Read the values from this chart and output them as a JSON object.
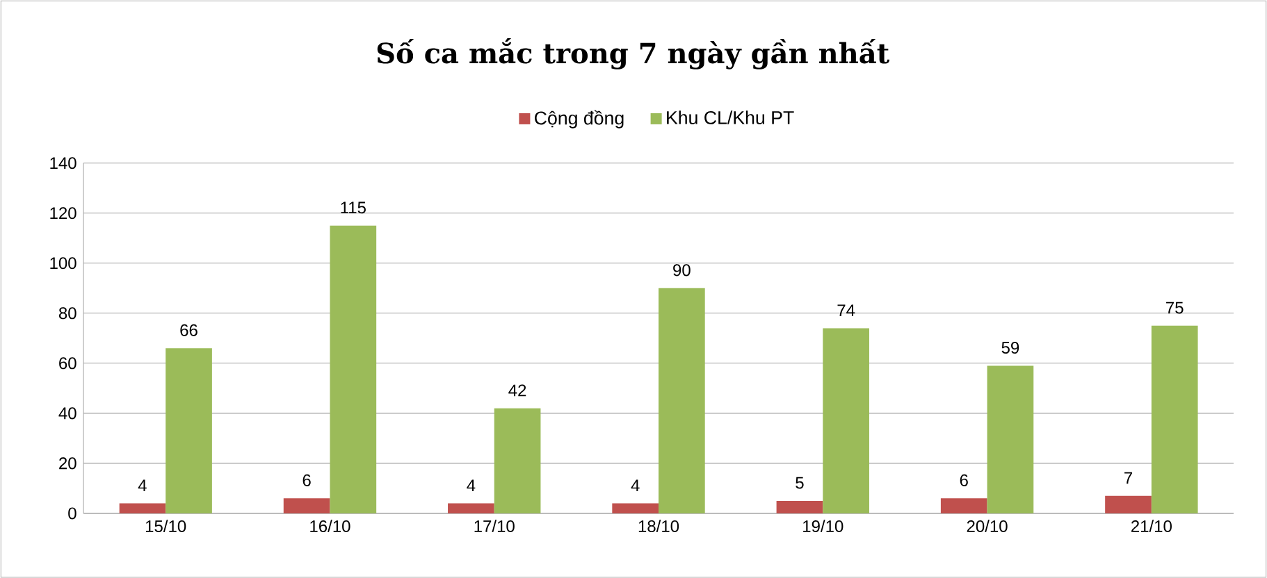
{
  "chart_data": {
    "type": "bar",
    "title": "Số ca mắc trong 7 ngày gần nhất",
    "categories": [
      "15/10",
      "16/10",
      "17/10",
      "18/10",
      "19/10",
      "20/10",
      "21/10"
    ],
    "series": [
      {
        "name": "Cộng đồng",
        "color": "#c0504d",
        "values": [
          4,
          6,
          4,
          4,
          5,
          6,
          7
        ]
      },
      {
        "name": "Khu CL/Khu PT",
        "color": "#9bbb59",
        "values": [
          66,
          115,
          42,
          90,
          74,
          59,
          75
        ]
      }
    ],
    "ylim": [
      0,
      140
    ],
    "yticks": [
      0,
      20,
      40,
      60,
      80,
      100,
      120,
      140
    ],
    "grid": "y",
    "legend": "top",
    "data_labels": true
  }
}
